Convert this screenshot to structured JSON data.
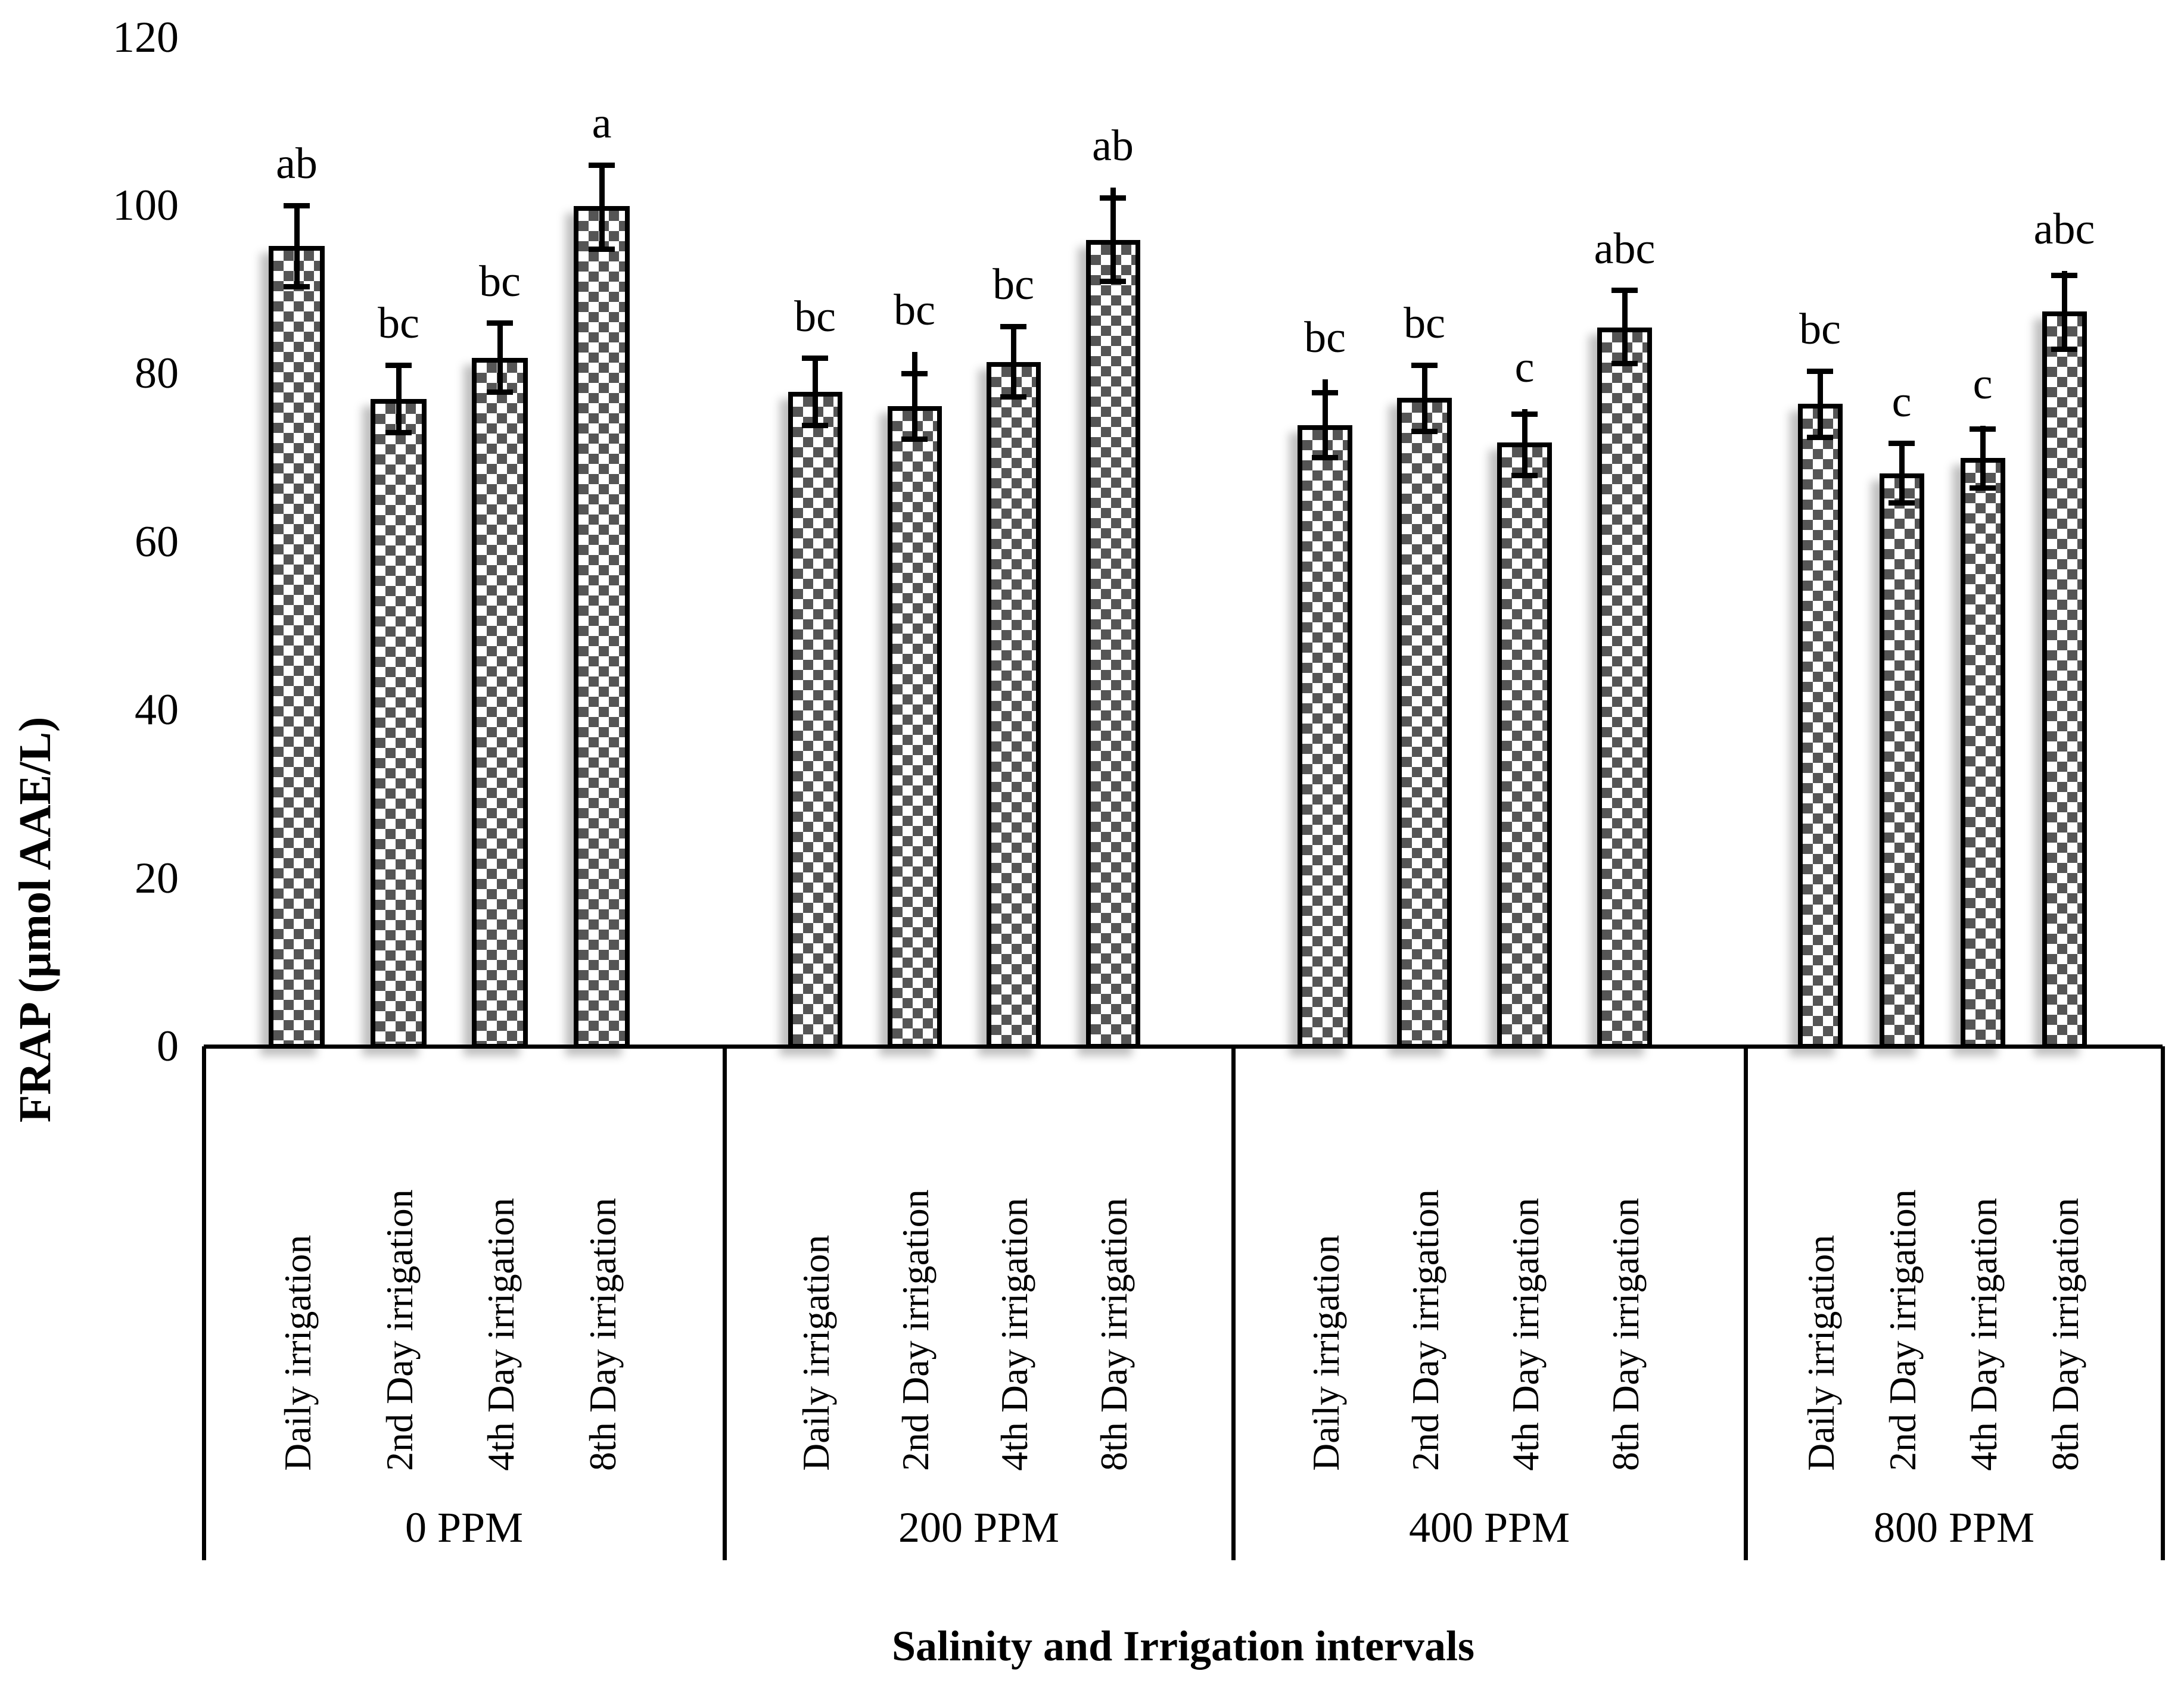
{
  "chart_data": {
    "type": "bar",
    "title": "",
    "xlabel": "Salinity and Irrigation intervals",
    "ylabel": "FRAP (µmol AAE/L)",
    "ylim": [
      0,
      120
    ],
    "yticks": [
      0,
      20,
      40,
      60,
      80,
      100,
      120
    ],
    "grid": false,
    "legend": false,
    "bar_categories": [
      "Daily irrigation",
      "2nd Day irrigation",
      "4th Day irrigation",
      "8th Day irrigation"
    ],
    "groups": [
      {
        "label": "0 PPM",
        "bars": [
          {
            "category": "Daily irrigation",
            "value": 95.2,
            "err_up": 4.8,
            "err_down": 4.9,
            "tip": 4.8,
            "letter": "ab"
          },
          {
            "category": "2nd Day irrigation",
            "value": 77.0,
            "err_up": 4.0,
            "err_down": 4.0,
            "tip": 4.0,
            "letter": "bc"
          },
          {
            "category": "4th Day irrigation",
            "value": 81.9,
            "err_up": 4.1,
            "err_down": 4.1,
            "tip": 4.1,
            "letter": "bc"
          },
          {
            "category": "8th Day irrigation",
            "value": 99.9,
            "err_up": 4.9,
            "err_down": 5.1,
            "tip": 4.9,
            "letter": "a"
          }
        ]
      },
      {
        "label": "200 PPM",
        "bars": [
          {
            "category": "Daily irrigation",
            "value": 77.8,
            "err_up": 4.0,
            "err_down": 4.0,
            "tip": 4.0,
            "letter": "bc"
          },
          {
            "category": "2nd Day irrigation",
            "value": 76.1,
            "err_up": 3.9,
            "err_down": 3.9,
            "tip": 6.5,
            "letter": "bc"
          },
          {
            "category": "4th Day irrigation",
            "value": 81.4,
            "err_up": 4.2,
            "err_down": 4.2,
            "tip": 4.2,
            "letter": "bc"
          },
          {
            "category": "8th Day irrigation",
            "value": 95.9,
            "err_up": 5.0,
            "err_down": 4.9,
            "tip": 6.2,
            "letter": "ab"
          }
        ]
      },
      {
        "label": "400 PPM",
        "bars": [
          {
            "category": "Daily irrigation",
            "value": 73.9,
            "err_up": 3.8,
            "err_down": 3.9,
            "tip": 5.4,
            "letter": "bc"
          },
          {
            "category": "2nd Day irrigation",
            "value": 77.1,
            "err_up": 3.9,
            "err_down": 4.0,
            "tip": 3.9,
            "letter": "bc"
          },
          {
            "category": "4th Day irrigation",
            "value": 71.8,
            "err_up": 3.4,
            "err_down": 3.9,
            "tip": 4.0,
            "letter": "c"
          },
          {
            "category": "8th Day irrigation",
            "value": 85.5,
            "err_up": 4.4,
            "err_down": 4.3,
            "tip": 4.4,
            "letter": "abc"
          }
        ]
      },
      {
        "label": "800 PPM",
        "bars": [
          {
            "category": "Daily irrigation",
            "value": 76.4,
            "err_up": 3.9,
            "err_down": 4.0,
            "tip": 3.9,
            "letter": "bc"
          },
          {
            "category": "2nd Day irrigation",
            "value": 68.1,
            "err_up": 3.6,
            "err_down": 3.5,
            "tip": 3.6,
            "letter": "c"
          },
          {
            "category": "4th Day irrigation",
            "value": 70.0,
            "err_up": 3.4,
            "err_down": 3.6,
            "tip": 3.8,
            "letter": "c"
          },
          {
            "category": "8th Day irrigation",
            "value": 87.4,
            "err_up": 4.3,
            "err_down": 4.5,
            "tip": 4.8,
            "letter": "abc"
          }
        ]
      }
    ],
    "colors": {
      "bar_pattern_dark": "#555555",
      "bar_border": "#000000",
      "text": "#000000",
      "background": "#ffffff"
    }
  }
}
